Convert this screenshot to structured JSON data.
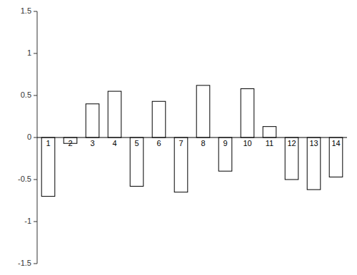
{
  "chart_data": {
    "type": "bar",
    "categories": [
      "1",
      "2",
      "3",
      "4",
      "5",
      "6",
      "7",
      "8",
      "9",
      "10",
      "11",
      "12",
      "13",
      "14"
    ],
    "values": [
      -0.7,
      -0.07,
      0.4,
      0.55,
      -0.58,
      0.43,
      -0.65,
      0.62,
      -0.4,
      0.58,
      0.13,
      -0.5,
      -0.62,
      -0.47
    ],
    "color": "#ffffff",
    "ylim": [
      -1.5,
      1.5
    ],
    "yticks": [
      -1.5,
      -1,
      -0.5,
      0,
      0.5,
      1,
      1.5
    ],
    "grid": false
  }
}
